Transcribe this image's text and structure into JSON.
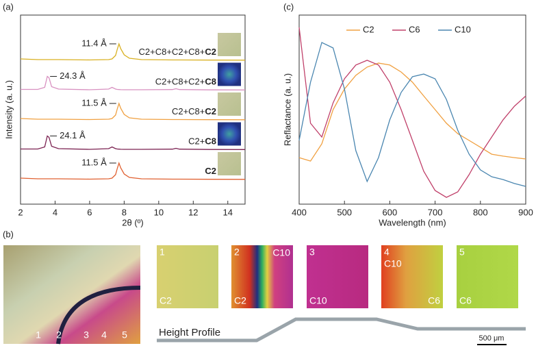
{
  "panel_labels": [
    "(a)",
    "(b)",
    "(c)"
  ],
  "chart_data": [
    {
      "type": "line",
      "xlabel": "2θ (º)",
      "ylabel": "Intensity (a. u.)",
      "xlim": [
        2,
        15
      ],
      "xticks": [
        2,
        4,
        6,
        8,
        10,
        12,
        14
      ],
      "x": [
        2,
        3,
        3.4,
        3.55,
        3.65,
        3.8,
        4.2,
        6,
        7.1,
        7.3,
        7.5,
        7.6,
        7.7,
        7.8,
        8.0,
        8.3,
        9,
        10.8,
        11,
        11.2,
        13,
        15
      ],
      "series": [
        {
          "label": "C2+C8+C2+C8+",
          "label_bold": "C2",
          "annotation": "11.4 Å",
          "color": "#d9b020",
          "values": [
            2,
            1,
            1,
            1,
            1,
            1,
            1,
            0.5,
            1,
            2,
            7,
            16,
            24,
            17,
            8,
            3,
            1,
            0.5,
            0.5,
            0.5,
            0.3,
            0.2
          ]
        },
        {
          "label": "C2+C8+C2+",
          "label_bold": "C8",
          "annotation": "24.3 Å",
          "color": "#d890c0",
          "values": [
            1,
            1,
            4,
            20,
            18,
            5,
            1.5,
            0.5,
            1.5,
            4,
            1.5,
            1,
            0.8,
            0.6,
            0.5,
            0.5,
            0.5,
            0.8,
            2,
            0.8,
            0.3,
            0.2
          ]
        },
        {
          "label": "C2+C8+",
          "label_bold": "C2",
          "annotation": "11.5 Å",
          "color": "#f0a040",
          "values": [
            2,
            1,
            1,
            1,
            1,
            1,
            1,
            0.5,
            1,
            2,
            7,
            16,
            24,
            17,
            8,
            3,
            1,
            0.5,
            0.5,
            0.5,
            0.3,
            0.2
          ]
        },
        {
          "label": "C2+",
          "label_bold": "C8",
          "annotation": "24.1 Å",
          "color": "#7a2050",
          "values": [
            1,
            1,
            4,
            20,
            18,
            5,
            1.5,
            0.5,
            1.5,
            4,
            1.5,
            1,
            0.8,
            0.6,
            0.5,
            0.5,
            0.5,
            0.8,
            2,
            0.8,
            0.3,
            0.2
          ]
        },
        {
          "label_bold": "C2",
          "annotation": "11.5 Å",
          "color": "#e06030",
          "values": [
            2,
            1,
            1,
            1,
            1,
            1,
            1,
            0.5,
            1,
            2,
            7,
            16,
            24,
            17,
            8,
            3,
            1,
            0.5,
            0.5,
            0.5,
            0.3,
            0.2
          ]
        }
      ]
    },
    {
      "type": "line",
      "xlabel": "Wavelength (nm)",
      "ylabel": "Reflactance (a. u.)",
      "xlim": [
        400,
        900
      ],
      "xticks": [
        400,
        500,
        600,
        700,
        800,
        900
      ],
      "ylim": [
        0,
        100
      ],
      "legend": "top",
      "x": [
        400,
        425,
        450,
        475,
        500,
        525,
        550,
        575,
        600,
        625,
        650,
        675,
        700,
        725,
        750,
        775,
        800,
        825,
        850,
        875,
        900
      ],
      "series": [
        {
          "name": "C2",
          "color": "#f0a040",
          "values": [
            24.6,
            22.8,
            31.9,
            50,
            60.9,
            68.1,
            72.5,
            74.6,
            73.6,
            69.9,
            64.5,
            57.2,
            50,
            42.8,
            37.3,
            33.7,
            30.1,
            26.4,
            25.4,
            24.6,
            23.9
          ]
        },
        {
          "name": "C6",
          "color": "#c0406a",
          "values": [
            93.5,
            42.8,
            35.5,
            53.6,
            66.3,
            73.6,
            76.1,
            73.6,
            64.5,
            50,
            33.7,
            17.4,
            7.2,
            3.6,
            6.5,
            15.6,
            26.4,
            35.5,
            44.6,
            51.8,
            57.2
          ]
        },
        {
          "name": "C10",
          "color": "#4a86b0",
          "values": [
            33.7,
            64.5,
            85.5,
            82.6,
            60.9,
            28.3,
            12,
            24.6,
            44.6,
            59.1,
            67.4,
            68.8,
            66.3,
            55.4,
            39.1,
            26.4,
            18.1,
            14.5,
            13,
            10.9,
            9.4
          ]
        }
      ]
    }
  ],
  "micrographs": {
    "overview_labels": [
      "1",
      "2",
      "3",
      "4",
      "5"
    ],
    "panels": [
      {
        "number": "1",
        "labels": [
          "C2"
        ]
      },
      {
        "number": "2",
        "labels": [
          "C10",
          "C2"
        ]
      },
      {
        "number": "3",
        "labels": [
          "C10"
        ]
      },
      {
        "number": "4",
        "labels": [
          "C10",
          "C6"
        ]
      },
      {
        "number": "5",
        "labels": [
          "C6"
        ]
      }
    ],
    "profile_label": "Height Profile",
    "scale_bar": "500 μm"
  }
}
